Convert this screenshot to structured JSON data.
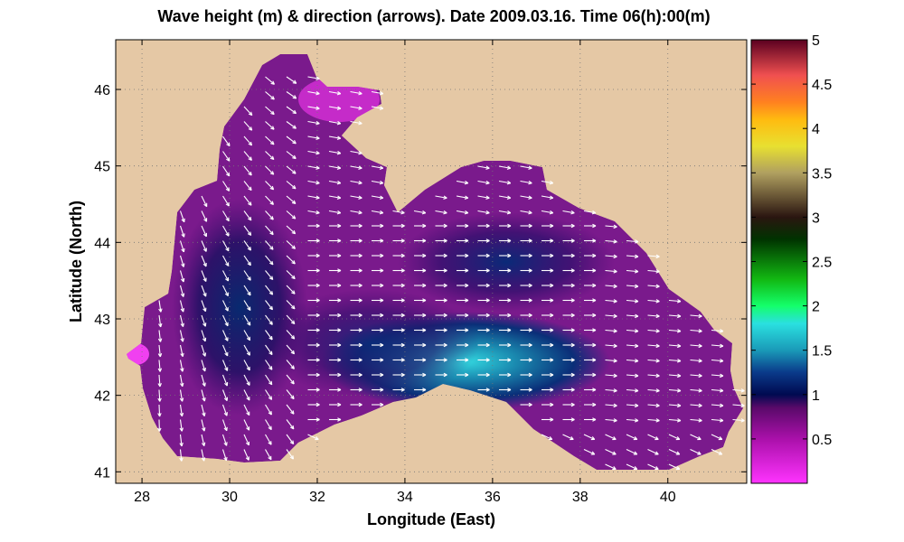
{
  "title": "Wave height (m) & direction (arrows). Date 2009.03.16. Time 06(h):00(m)",
  "map": {
    "xlabel": "Longitude (East)",
    "ylabel": "Latitude (North)",
    "xlim": [
      27.4,
      41.8
    ],
    "ylim": [
      40.85,
      46.65
    ],
    "xticks": [
      28,
      30,
      32,
      34,
      36,
      38,
      40
    ],
    "yticks": [
      41,
      42,
      43,
      44,
      45,
      46
    ],
    "land_color": "#e5c8a5",
    "arrow_color": "#ffffff",
    "grid": "dotted"
  },
  "colorbar": {
    "range": [
      0,
      5
    ],
    "ticks": [
      0.5,
      1,
      1.5,
      2,
      2.5,
      3,
      3.5,
      4,
      4.5,
      5
    ],
    "tick_labels": [
      "0.5",
      "1",
      "1.5",
      "2",
      "2.5",
      "3",
      "3.5",
      "4",
      "4.5",
      "5"
    ],
    "stops": [
      {
        "v": 0.0,
        "c": "#ff33ff"
      },
      {
        "v": 0.5,
        "c": "#aa10aa"
      },
      {
        "v": 0.85,
        "c": "#5a0a6a"
      },
      {
        "v": 1.0,
        "c": "#000a50"
      },
      {
        "v": 1.25,
        "c": "#0a3a8a"
      },
      {
        "v": 1.5,
        "c": "#1a9ab8"
      },
      {
        "v": 1.8,
        "c": "#2ae0e0"
      },
      {
        "v": 2.0,
        "c": "#14ff6a"
      },
      {
        "v": 2.3,
        "c": "#12b812"
      },
      {
        "v": 2.75,
        "c": "#003300"
      },
      {
        "v": 3.0,
        "c": "#2a1510"
      },
      {
        "v": 3.5,
        "c": "#b0a060"
      },
      {
        "v": 3.8,
        "c": "#e8e030"
      },
      {
        "v": 4.1,
        "c": "#ffbb10"
      },
      {
        "v": 4.3,
        "c": "#ff8020"
      },
      {
        "v": 4.6,
        "c": "#f05050"
      },
      {
        "v": 5.0,
        "c": "#5a0020"
      }
    ]
  }
}
